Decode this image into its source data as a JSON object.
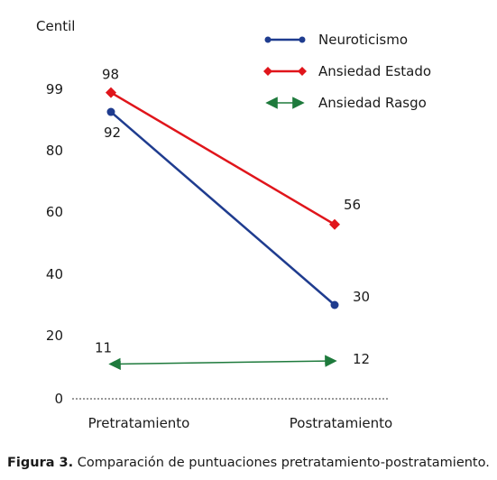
{
  "chart_data": {
    "type": "line",
    "ylabel": "Centil",
    "categories": [
      "Pretratamiento",
      "Postratamiento"
    ],
    "yticks": [
      {
        "value": 0,
        "label": "0"
      },
      {
        "value": 20,
        "label": "20"
      },
      {
        "value": 40,
        "label": "40"
      },
      {
        "value": 60,
        "label": "60"
      },
      {
        "value": 80,
        "label": "80"
      },
      {
        "value": 99,
        "label": "99"
      }
    ],
    "series": [
      {
        "name": "Neuroticismo",
        "values": [
          92,
          30
        ],
        "labels": [
          "92",
          "30"
        ],
        "color": "#1f3c8f",
        "marker": "circle"
      },
      {
        "name": "Ansiedad Estado",
        "values": [
          98,
          56
        ],
        "labels": [
          "98",
          "56"
        ],
        "color": "#e0151b",
        "marker": "diamond"
      },
      {
        "name": "Ansiedad Rasgo",
        "values": [
          11,
          12
        ],
        "labels": [
          "11",
          "12"
        ],
        "color": "#1e7a3c",
        "marker": "arrow"
      }
    ],
    "legend_position": "top-right",
    "grid": false
  },
  "caption": {
    "prefix": "Figura 3.",
    "text": " Comparación de puntuaciones pretratamiento-postratamiento."
  }
}
